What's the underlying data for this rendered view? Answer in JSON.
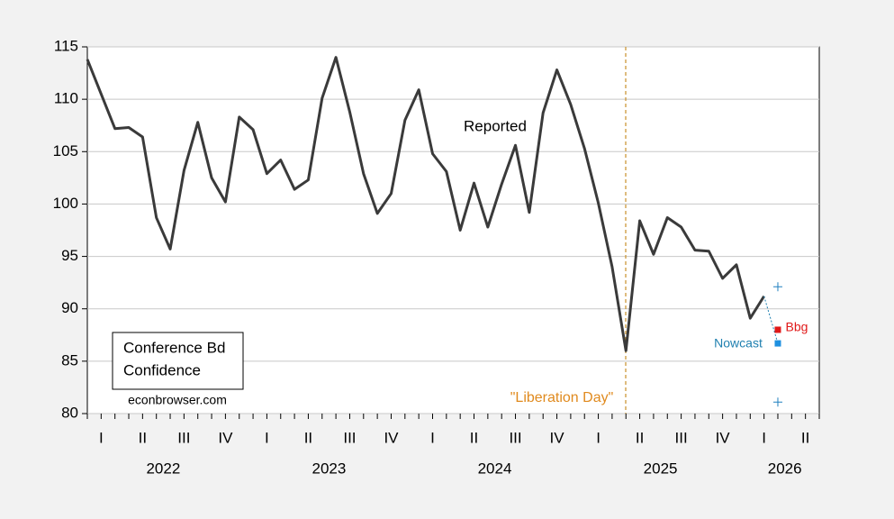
{
  "chart_data": {
    "type": "line",
    "title_lines": [
      "Conference Bd",
      "Confidence"
    ],
    "source": "econbrowser.com",
    "annotations": {
      "event": "\"Liberation Day\""
    },
    "quarter_labels": [
      "I",
      "II",
      "III",
      "IV",
      "I",
      "II",
      "III",
      "IV",
      "I",
      "II",
      "III",
      "IV",
      "I",
      "II",
      "III",
      "IV",
      "I",
      "II"
    ],
    "years": [
      "2022",
      "2023",
      "2024",
      "2025",
      "2026"
    ],
    "ylim": [
      80,
      115
    ],
    "yticks": [
      80,
      85,
      90,
      95,
      100,
      105,
      110,
      115
    ],
    "grid": true,
    "series": [
      {
        "name": "Reported",
        "color": "#3a3a3a",
        "values": [
          113.8,
          110.5,
          107.2,
          107.3,
          106.4,
          98.7,
          95.7,
          103.2,
          107.8,
          102.5,
          100.2,
          108.3,
          107.1,
          102.9,
          104.2,
          101.4,
          102.3,
          110.1,
          114.0,
          108.8,
          102.9,
          99.1,
          101.0,
          108.0,
          110.9,
          104.8,
          103.1,
          97.5,
          102.0,
          97.8,
          101.9,
          105.6,
          99.2,
          108.7,
          112.8,
          109.5,
          105.3,
          100.1,
          94.0,
          86.0,
          98.4,
          95.2,
          98.7,
          97.8,
          95.6,
          95.5,
          92.9,
          94.2,
          89.1,
          91.2
        ]
      },
      {
        "name": "Nowcast",
        "color": "#1e90e0",
        "values": [
          null,
          null,
          null,
          null,
          null,
          null,
          null,
          null,
          null,
          null,
          null,
          null,
          null,
          null,
          null,
          null,
          null,
          null,
          null,
          null,
          null,
          null,
          null,
          null,
          null,
          null,
          null,
          null,
          null,
          null,
          null,
          null,
          null,
          null,
          null,
          null,
          null,
          null,
          null,
          null,
          null,
          null,
          null,
          null,
          null,
          null,
          null,
          null,
          null,
          null,
          86.7
        ],
        "upper": [
          null,
          null,
          null,
          null,
          null,
          null,
          null,
          null,
          null,
          null,
          null,
          null,
          null,
          null,
          null,
          null,
          null,
          null,
          null,
          null,
          null,
          null,
          null,
          null,
          null,
          null,
          null,
          null,
          null,
          null,
          null,
          null,
          null,
          null,
          null,
          null,
          null,
          null,
          null,
          null,
          null,
          null,
          null,
          null,
          null,
          null,
          null,
          null,
          null,
          null,
          92.1
        ],
        "lower": [
          null,
          null,
          null,
          null,
          null,
          null,
          null,
          null,
          null,
          null,
          null,
          null,
          null,
          null,
          null,
          null,
          null,
          null,
          null,
          null,
          null,
          null,
          null,
          null,
          null,
          null,
          null,
          null,
          null,
          null,
          null,
          null,
          null,
          null,
          null,
          null,
          null,
          null,
          null,
          null,
          null,
          null,
          null,
          null,
          null,
          null,
          null,
          null,
          null,
          null,
          81.1
        ]
      },
      {
        "name": "Bbg",
        "color": "#e01818",
        "values": [
          null,
          null,
          null,
          null,
          null,
          null,
          null,
          null,
          null,
          null,
          null,
          null,
          null,
          null,
          null,
          null,
          null,
          null,
          null,
          null,
          null,
          null,
          null,
          null,
          null,
          null,
          null,
          null,
          null,
          null,
          null,
          null,
          null,
          null,
          null,
          null,
          null,
          null,
          null,
          null,
          null,
          null,
          null,
          null,
          null,
          null,
          null,
          null,
          null,
          null,
          88.0
        ]
      }
    ]
  }
}
